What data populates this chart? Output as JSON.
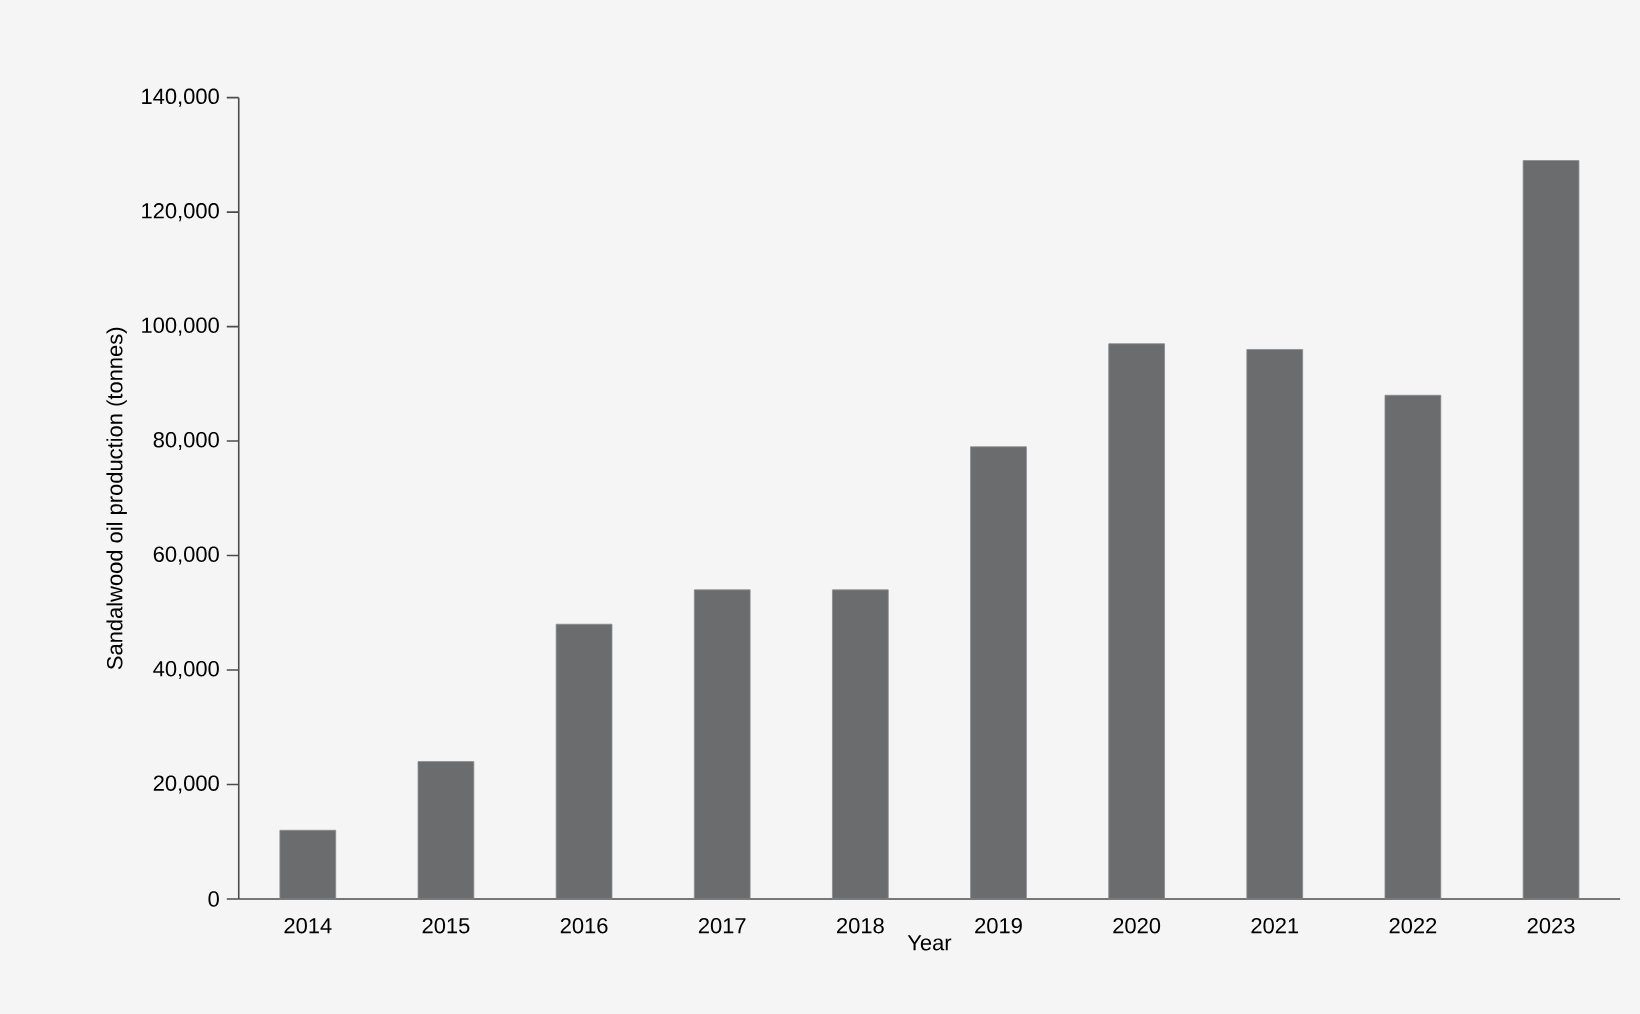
{
  "chart_data": {
    "type": "bar",
    "xlabel": "Year",
    "ylabel": "Sandalwood oil production (tonnes)",
    "categories": [
      "2014",
      "2015",
      "2016",
      "2017",
      "2018",
      "2019",
      "2020",
      "2021",
      "2022",
      "2023"
    ],
    "values": [
      12000,
      24000,
      48000,
      54000,
      54000,
      79000,
      97000,
      96000,
      88000,
      129000
    ],
    "color": "#6b6c6e",
    "ylim": [
      0,
      140000
    ],
    "yticks": [
      0,
      {
        "value": 20000,
        "label": "20,000"
      },
      {
        "value": 40000,
        "label": "40,000"
      },
      {
        "value": 60000,
        "label": "60,000"
      },
      {
        "value": 80000,
        "label": "80,000"
      },
      {
        "value": 100000,
        "label": "100,000"
      },
      {
        "value": 120000,
        "label": "120,000"
      },
      {
        "value": 140000,
        "label": "140,000"
      }
    ]
  }
}
